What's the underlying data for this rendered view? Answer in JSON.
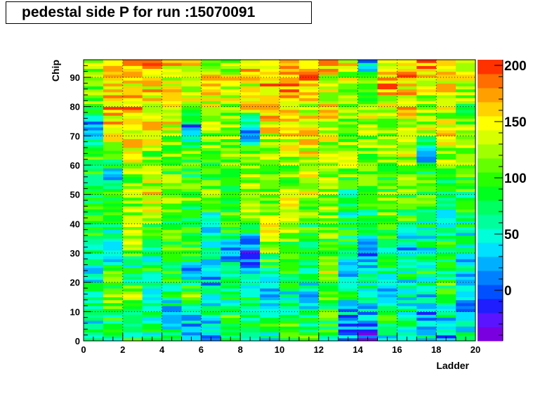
{
  "title": "pedestal side P for run :15070091",
  "chart_data": {
    "type": "heatmap",
    "title": "pedestal side P for run :15070091",
    "xlabel": "Ladder",
    "ylabel": "Chip",
    "xlim": [
      0,
      20
    ],
    "ylim": [
      0,
      96
    ],
    "zlim": [
      -45,
      205
    ],
    "x_ticks": [
      "0",
      "2",
      "4",
      "6",
      "8",
      "10",
      "12",
      "14",
      "16",
      "18",
      "20"
    ],
    "y_ticks": [
      "0",
      "10",
      "20",
      "30",
      "40",
      "50",
      "60",
      "70",
      "80",
      "90"
    ],
    "z_ticks": [
      "0",
      "50",
      "100",
      "150",
      "200"
    ],
    "grid": true,
    "nx": 20,
    "ny": 96,
    "palette": [
      "#7a00e0",
      "#5a14ff",
      "#1e1eff",
      "#0050ff",
      "#0080ff",
      "#00b0ff",
      "#00e0ff",
      "#00ffd8",
      "#00ff9c",
      "#00ff60",
      "#00ff1e",
      "#28ff00",
      "#64ff00",
      "#a0ff00",
      "#d8ff00",
      "#ffff00",
      "#ffd200",
      "#ffa000",
      "#ff6e00",
      "#ff3200"
    ],
    "value_notes": "Approximate per-ladder pedestal levels sampled in chip bands (data units); rows within each band vary.",
    "column_profiles": [
      [
        [
          0,
          60
        ],
        [
          8,
          50
        ],
        [
          16,
          75
        ],
        [
          24,
          35
        ],
        [
          32,
          70
        ],
        [
          40,
          85
        ],
        [
          48,
          90
        ],
        [
          56,
          65
        ],
        [
          64,
          120
        ],
        [
          72,
          0
        ],
        [
          80,
          100
        ],
        [
          88,
          120
        ],
        [
          96,
          110
        ]
      ],
      [
        [
          0,
          70
        ],
        [
          8,
          80
        ],
        [
          16,
          120
        ],
        [
          24,
          90
        ],
        [
          32,
          20
        ],
        [
          40,
          90
        ],
        [
          48,
          110
        ],
        [
          56,
          20
        ],
        [
          64,
          130
        ],
        [
          72,
          150
        ],
        [
          80,
          160
        ],
        [
          88,
          150
        ],
        [
          96,
          170
        ]
      ],
      [
        [
          0,
          90
        ],
        [
          8,
          60
        ],
        [
          16,
          120
        ],
        [
          24,
          60
        ],
        [
          32,
          110
        ],
        [
          40,
          130
        ],
        [
          48,
          120
        ],
        [
          56,
          110
        ],
        [
          64,
          140
        ],
        [
          72,
          160
        ],
        [
          80,
          170
        ],
        [
          88,
          150
        ],
        [
          96,
          190
        ]
      ],
      [
        [
          0,
          70
        ],
        [
          8,
          60
        ],
        [
          16,
          30
        ],
        [
          24,
          90
        ],
        [
          32,
          40
        ],
        [
          40,
          110
        ],
        [
          48,
          150
        ],
        [
          56,
          120
        ],
        [
          64,
          120
        ],
        [
          72,
          170
        ],
        [
          80,
          150
        ],
        [
          88,
          160
        ],
        [
          96,
          180
        ]
      ],
      [
        [
          0,
          100
        ],
        [
          8,
          30
        ],
        [
          16,
          70
        ],
        [
          24,
          80
        ],
        [
          32,
          110
        ],
        [
          40,
          90
        ],
        [
          48,
          110
        ],
        [
          56,
          100
        ],
        [
          64,
          110
        ],
        [
          72,
          130
        ],
        [
          80,
          150
        ],
        [
          88,
          140
        ],
        [
          96,
          160
        ]
      ],
      [
        [
          0,
          10
        ],
        [
          8,
          40
        ],
        [
          16,
          120
        ],
        [
          24,
          30
        ],
        [
          32,
          100
        ],
        [
          40,
          80
        ],
        [
          48,
          110
        ],
        [
          56,
          90
        ],
        [
          64,
          110
        ],
        [
          72,
          0
        ],
        [
          80,
          130
        ],
        [
          88,
          130
        ],
        [
          96,
          150
        ]
      ],
      [
        [
          0,
          20
        ],
        [
          8,
          50
        ],
        [
          16,
          40
        ],
        [
          24,
          20
        ],
        [
          32,
          60
        ],
        [
          40,
          20
        ],
        [
          48,
          120
        ],
        [
          56,
          100
        ],
        [
          64,
          110
        ],
        [
          72,
          120
        ],
        [
          80,
          130
        ],
        [
          88,
          150
        ],
        [
          96,
          130
        ]
      ],
      [
        [
          0,
          70
        ],
        [
          8,
          90
        ],
        [
          16,
          60
        ],
        [
          24,
          50
        ],
        [
          32,
          30
        ],
        [
          40,
          120
        ],
        [
          48,
          90
        ],
        [
          56,
          100
        ],
        [
          64,
          110
        ],
        [
          72,
          130
        ],
        [
          80,
          120
        ],
        [
          88,
          150
        ],
        [
          96,
          120
        ]
      ],
      [
        [
          0,
          40
        ],
        [
          8,
          80
        ],
        [
          16,
          90
        ],
        [
          24,
          20
        ],
        [
          32,
          0
        ],
        [
          40,
          100
        ],
        [
          48,
          140
        ],
        [
          56,
          110
        ],
        [
          64,
          120
        ],
        [
          72,
          0
        ],
        [
          80,
          150
        ],
        [
          88,
          150
        ],
        [
          96,
          160
        ]
      ],
      [
        [
          0,
          50
        ],
        [
          8,
          90
        ],
        [
          16,
          20
        ],
        [
          24,
          80
        ],
        [
          32,
          110
        ],
        [
          40,
          130
        ],
        [
          48,
          120
        ],
        [
          56,
          90
        ],
        [
          64,
          120
        ],
        [
          72,
          140
        ],
        [
          80,
          170
        ],
        [
          88,
          160
        ],
        [
          96,
          130
        ]
      ],
      [
        [
          0,
          110
        ],
        [
          8,
          80
        ],
        [
          16,
          60
        ],
        [
          24,
          90
        ],
        [
          32,
          100
        ],
        [
          40,
          130
        ],
        [
          48,
          140
        ],
        [
          56,
          110
        ],
        [
          64,
          130
        ],
        [
          72,
          150
        ],
        [
          80,
          160
        ],
        [
          88,
          180
        ],
        [
          96,
          200
        ]
      ],
      [
        [
          0,
          90
        ],
        [
          8,
          70
        ],
        [
          16,
          30
        ],
        [
          24,
          60
        ],
        [
          32,
          80
        ],
        [
          40,
          100
        ],
        [
          48,
          120
        ],
        [
          56,
          130
        ],
        [
          64,
          140
        ],
        [
          72,
          150
        ],
        [
          80,
          140
        ],
        [
          88,
          170
        ],
        [
          96,
          180
        ]
      ],
      [
        [
          0,
          80
        ],
        [
          8,
          100
        ],
        [
          16,
          90
        ],
        [
          24,
          130
        ],
        [
          32,
          100
        ],
        [
          40,
          120
        ],
        [
          48,
          110
        ],
        [
          56,
          120
        ],
        [
          64,
          130
        ],
        [
          72,
          130
        ],
        [
          80,
          150
        ],
        [
          88,
          140
        ],
        [
          96,
          170
        ]
      ],
      [
        [
          0,
          30
        ],
        [
          8,
          20
        ],
        [
          16,
          70
        ],
        [
          24,
          40
        ],
        [
          32,
          90
        ],
        [
          40,
          80
        ],
        [
          48,
          60
        ],
        [
          56,
          100
        ],
        [
          64,
          120
        ],
        [
          72,
          110
        ],
        [
          80,
          130
        ],
        [
          88,
          120
        ],
        [
          96,
          140
        ]
      ],
      [
        [
          0,
          -20
        ],
        [
          8,
          30
        ],
        [
          16,
          60
        ],
        [
          24,
          50
        ],
        [
          32,
          0
        ],
        [
          40,
          80
        ],
        [
          48,
          90
        ],
        [
          56,
          100
        ],
        [
          64,
          110
        ],
        [
          72,
          130
        ],
        [
          80,
          120
        ],
        [
          88,
          110
        ],
        [
          96,
          10
        ]
      ],
      [
        [
          0,
          50
        ],
        [
          8,
          80
        ],
        [
          16,
          20
        ],
        [
          24,
          60
        ],
        [
          32,
          90
        ],
        [
          40,
          100
        ],
        [
          48,
          110
        ],
        [
          56,
          100
        ],
        [
          64,
          120
        ],
        [
          72,
          120
        ],
        [
          80,
          130
        ],
        [
          88,
          170
        ],
        [
          96,
          130
        ]
      ],
      [
        [
          0,
          80
        ],
        [
          8,
          60
        ],
        [
          16,
          50
        ],
        [
          24,
          70
        ],
        [
          32,
          30
        ],
        [
          40,
          90
        ],
        [
          48,
          100
        ],
        [
          56,
          110
        ],
        [
          64,
          130
        ],
        [
          72,
          130
        ],
        [
          80,
          150
        ],
        [
          88,
          160
        ],
        [
          96,
          160
        ]
      ],
      [
        [
          0,
          60
        ],
        [
          8,
          20
        ],
        [
          16,
          40
        ],
        [
          24,
          80
        ],
        [
          32,
          60
        ],
        [
          40,
          70
        ],
        [
          48,
          100
        ],
        [
          56,
          90
        ],
        [
          64,
          20
        ],
        [
          72,
          130
        ],
        [
          80,
          110
        ],
        [
          88,
          150
        ],
        [
          96,
          180
        ]
      ],
      [
        [
          0,
          20
        ],
        [
          8,
          50
        ],
        [
          16,
          90
        ],
        [
          24,
          80
        ],
        [
          32,
          100
        ],
        [
          40,
          40
        ],
        [
          48,
          90
        ],
        [
          56,
          100
        ],
        [
          64,
          120
        ],
        [
          72,
          140
        ],
        [
          80,
          130
        ],
        [
          88,
          150
        ],
        [
          96,
          160
        ]
      ],
      [
        [
          0,
          70
        ],
        [
          8,
          30
        ],
        [
          16,
          20
        ],
        [
          24,
          40
        ],
        [
          32,
          50
        ],
        [
          40,
          70
        ],
        [
          48,
          80
        ],
        [
          56,
          110
        ],
        [
          64,
          130
        ],
        [
          72,
          120
        ],
        [
          80,
          100
        ],
        [
          88,
          130
        ],
        [
          96,
          140
        ]
      ]
    ]
  }
}
